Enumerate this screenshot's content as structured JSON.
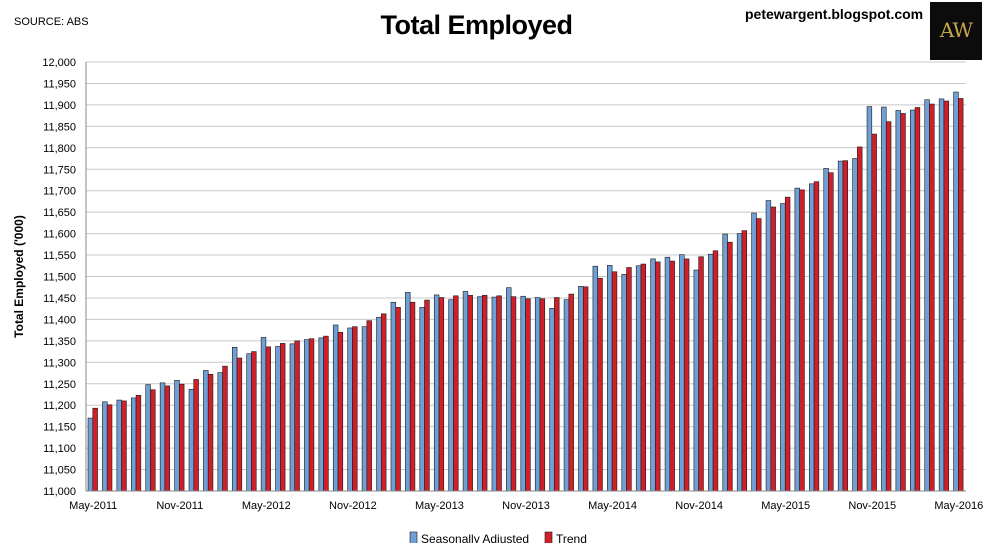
{
  "source": "SOURCE: ABS",
  "blog": "petewargent.blogspot.com",
  "logo": "AW",
  "chart_data": {
    "type": "bar",
    "title": "Total Employed",
    "ylabel": "Total Employed ('000)",
    "xlabel": "",
    "ylim": [
      11000,
      12000
    ],
    "ytick_step": 50,
    "grid": true,
    "legend": "bottom",
    "x_tick_labels": [
      "May-2011",
      "Nov-2011",
      "May-2012",
      "Nov-2012",
      "May-2013",
      "Nov-2013",
      "May-2014",
      "Nov-2014",
      "May-2015",
      "Nov-2015",
      "May-2016"
    ],
    "x_tick_every": 6,
    "categories": [
      "May-2011",
      "Jun-2011",
      "Jul-2011",
      "Aug-2011",
      "Sep-2011",
      "Oct-2011",
      "Nov-2011",
      "Dec-2011",
      "Jan-2012",
      "Feb-2012",
      "Mar-2012",
      "Apr-2012",
      "May-2012",
      "Jun-2012",
      "Jul-2012",
      "Aug-2012",
      "Sep-2012",
      "Oct-2012",
      "Nov-2012",
      "Dec-2012",
      "Jan-2013",
      "Feb-2013",
      "Mar-2013",
      "Apr-2013",
      "May-2013",
      "Jun-2013",
      "Jul-2013",
      "Aug-2013",
      "Sep-2013",
      "Oct-2013",
      "Nov-2013",
      "Dec-2013",
      "Jan-2014",
      "Feb-2014",
      "Mar-2014",
      "Apr-2014",
      "May-2014",
      "Jun-2014",
      "Jul-2014",
      "Aug-2014",
      "Sep-2014",
      "Oct-2014",
      "Nov-2014",
      "Dec-2014",
      "Jan-2015",
      "Feb-2015",
      "Mar-2015",
      "Apr-2015",
      "May-2015",
      "Jun-2015",
      "Jul-2015",
      "Aug-2015",
      "Sep-2015",
      "Oct-2015",
      "Nov-2015",
      "Dec-2015",
      "Jan-2016",
      "Feb-2016",
      "Mar-2016",
      "Apr-2016",
      "May-2016"
    ],
    "series": [
      {
        "name": "Seasonally Adjusted",
        "color": "#6f9fd4",
        "values": [
          11170,
          11208,
          11212,
          11217,
          11248,
          11252,
          11258,
          11237,
          11281,
          11276,
          11335,
          11320,
          11358,
          11337,
          11343,
          11353,
          11357,
          11387,
          11380,
          11383,
          11405,
          11440,
          11463,
          11428,
          11457,
          11446,
          11465,
          11453,
          11452,
          11474,
          11454,
          11451,
          11426,
          11446,
          11477,
          11524,
          11526,
          11505,
          11525,
          11541,
          11545,
          11551,
          11515,
          11552,
          11599,
          11600,
          11648,
          11677,
          11670,
          11706,
          11716,
          11752,
          11769,
          11775,
          11896,
          11895,
          11887,
          11888,
          11912,
          11914,
          11930
        ]
      },
      {
        "name": "Trend",
        "color": "#d11f2a",
        "values": [
          11193,
          11201,
          11210,
          11223,
          11236,
          11245,
          11249,
          11260,
          11272,
          11291,
          11310,
          11325,
          11336,
          11344,
          11350,
          11355,
          11361,
          11370,
          11383,
          11397,
          11413,
          11428,
          11440,
          11445,
          11451,
          11455,
          11456,
          11456,
          11455,
          11453,
          11448,
          11448,
          11451,
          11459,
          11476,
          11496,
          11511,
          11521,
          11529,
          11534,
          11536,
          11541,
          11546,
          11560,
          11580,
          11607,
          11635,
          11662,
          11685,
          11702,
          11721,
          11742,
          11770,
          11802,
          11832,
          11861,
          11880,
          11894,
          11902,
          11909,
          11915
        ]
      }
    ]
  }
}
